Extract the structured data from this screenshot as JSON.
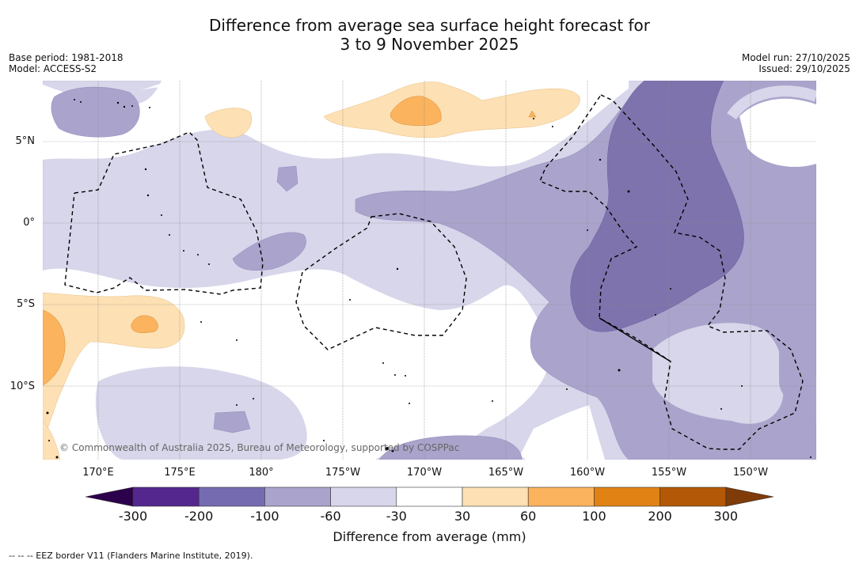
{
  "header": {
    "title_line1": "Difference from average sea surface height forecast for",
    "title_line2": "3 to 9 November 2025",
    "base_period": "Base period: 1981-2018",
    "model": "Model: ACCESS-S2",
    "model_run": "Model run: 27/10/2025",
    "issued": "Issued: 29/10/2025"
  },
  "map": {
    "lat_labels": [
      "5°N",
      "0°",
      "5°S",
      "10°S"
    ],
    "lon_labels": [
      "170°E",
      "175°E",
      "180°",
      "175°W",
      "170°W",
      "165°W",
      "160°W",
      "155°W",
      "150°W"
    ],
    "copyright": "© Commonwealth of Australia 2025, Bureau of Meteorology, supported by COSPPac"
  },
  "colorbar": {
    "ticks": [
      "-300",
      "-200",
      "-100",
      "-60",
      "-30",
      "30",
      "60",
      "100",
      "200",
      "300"
    ],
    "colors": [
      "#54278f",
      "#756bb1",
      "#aaa4cc",
      "#d7d6ea",
      "#ffffff",
      "#fde0b3",
      "#fbb35e",
      "#e08214",
      "#b35806"
    ],
    "under_color": "#2d004b",
    "over_color": "#7f3b08",
    "label": "Difference from average (mm)"
  },
  "legend": {
    "eez_text": "--  --  -- EEZ border V11 (Flanders Marine Institute, 2019)."
  }
}
